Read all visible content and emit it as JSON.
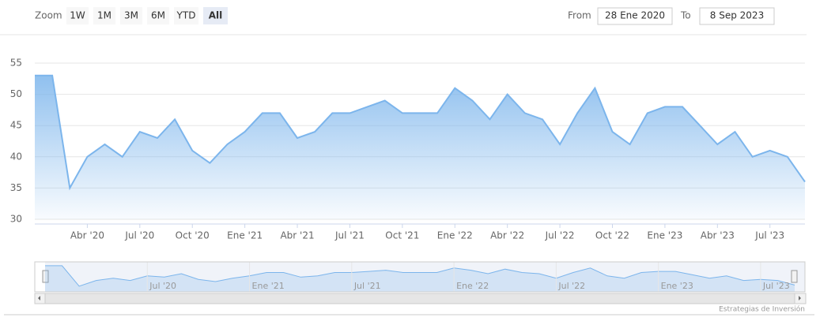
{
  "chart_data": {
    "type": "area",
    "range_selector": {
      "label": "Zoom",
      "buttons": [
        "1W",
        "1M",
        "3M",
        "6M",
        "YTD",
        "All"
      ],
      "selected": "All",
      "from_label": "From",
      "from": "28 Ene 2020",
      "to_label": "To",
      "to": "8 Sep 2023"
    },
    "credits": "Estrategias de Inversión",
    "color": "#7cb5ec",
    "x": [
      "2020-01",
      "2020-02",
      "2020-03",
      "2020-04",
      "2020-05",
      "2020-06",
      "2020-07",
      "2020-08",
      "2020-09",
      "2020-10",
      "2020-11",
      "2020-12",
      "2021-01",
      "2021-02",
      "2021-03",
      "2021-04",
      "2021-05",
      "2021-06",
      "2021-07",
      "2021-08",
      "2021-09",
      "2021-10",
      "2021-11",
      "2021-12",
      "2022-01",
      "2022-02",
      "2022-03",
      "2022-04",
      "2022-05",
      "2022-06",
      "2022-07",
      "2022-08",
      "2022-09",
      "2022-10",
      "2022-11",
      "2022-12",
      "2023-01",
      "2023-02",
      "2023-03",
      "2023-04",
      "2023-05",
      "2023-06",
      "2023-07",
      "2023-08",
      "2023-09"
    ],
    "values": [
      53,
      53,
      35,
      40,
      42,
      40,
      44,
      43,
      46,
      41,
      39,
      42,
      44,
      47,
      47,
      43,
      44,
      47,
      47,
      48,
      49,
      47,
      47,
      47,
      51,
      49,
      46,
      50,
      47,
      46,
      42,
      47,
      51,
      44,
      42,
      47,
      48,
      48,
      45,
      42,
      44,
      40,
      41,
      40,
      36
    ],
    "xlim": [
      "2020-01",
      "2023-09"
    ],
    "xticks": [
      {
        "value": "2020-04",
        "label": "Abr '20"
      },
      {
        "value": "2020-07",
        "label": "Jul '20"
      },
      {
        "value": "2020-10",
        "label": "Oct '20"
      },
      {
        "value": "2021-01",
        "label": "Ene '21"
      },
      {
        "value": "2021-04",
        "label": "Abr '21"
      },
      {
        "value": "2021-07",
        "label": "Jul '21"
      },
      {
        "value": "2021-10",
        "label": "Oct '21"
      },
      {
        "value": "2022-01",
        "label": "Ene '22"
      },
      {
        "value": "2022-04",
        "label": "Abr '22"
      },
      {
        "value": "2022-07",
        "label": "Jul '22"
      },
      {
        "value": "2022-10",
        "label": "Oct '22"
      },
      {
        "value": "2023-01",
        "label": "Ene '23"
      },
      {
        "value": "2023-04",
        "label": "Abr '23"
      },
      {
        "value": "2023-07",
        "label": "Jul '23"
      }
    ],
    "navigator_xticks": [
      {
        "value": "2020-07",
        "label": "Jul '20"
      },
      {
        "value": "2021-01",
        "label": "Ene '21"
      },
      {
        "value": "2021-07",
        "label": "Jul '21"
      },
      {
        "value": "2022-01",
        "label": "Ene '22"
      },
      {
        "value": "2022-07",
        "label": "Jul '22"
      },
      {
        "value": "2023-01",
        "label": "Ene '23"
      },
      {
        "value": "2023-07",
        "label": "Jul '23"
      }
    ],
    "ylim": [
      30,
      55
    ],
    "yticks": [
      30,
      35,
      40,
      45,
      50,
      55
    ],
    "grid": true
  }
}
